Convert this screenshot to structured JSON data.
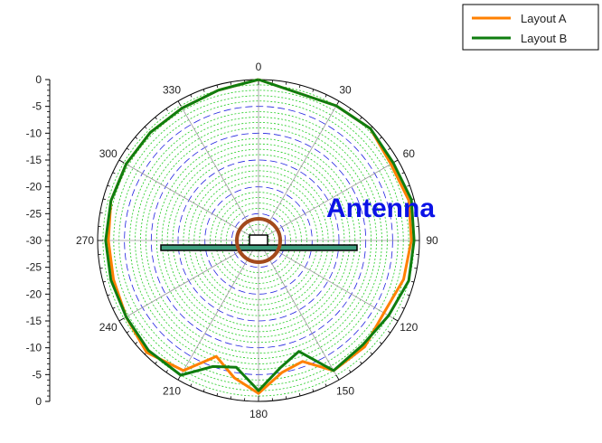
{
  "chart_data": {
    "type": "line",
    "polar": true,
    "theta_direction": "clockwise",
    "theta_zero": "top",
    "r_min": -30,
    "r_max": 0,
    "r_ticks": [
      0,
      -5,
      -10,
      -15,
      -20,
      -25,
      -30
    ],
    "angle_labels": [
      "0",
      "30",
      "60",
      "90",
      "120",
      "150",
      "180",
      "210",
      "240",
      "270",
      "300",
      "330"
    ],
    "angles": [
      0,
      30,
      60,
      90,
      120,
      150,
      180,
      210,
      240,
      270,
      300,
      330
    ],
    "radial_scale_labels": [
      "0",
      "-5",
      "-10",
      "-15",
      "-20",
      "-25",
      "-30",
      "-25",
      "-20",
      "-15",
      "-10",
      "-5",
      "0"
    ],
    "annotation": "Antenna",
    "legend_position": "top-right",
    "series": [
      {
        "name": "Layout A",
        "color": "#ff8000",
        "theta": [
          0,
          30,
          45,
          60,
          75,
          90,
          105,
          120,
          135,
          150,
          160,
          170,
          180,
          190,
          200,
          210,
          225,
          240,
          255,
          270,
          285,
          300,
          315,
          330,
          345,
          360
        ],
        "r": [
          0,
          -1,
          -0.5,
          -1.5,
          -1,
          -1.5,
          -2,
          -3,
          -2,
          -2,
          -6,
          -5,
          -1.5,
          -4,
          -7,
          -2,
          -0.5,
          -1.5,
          -2,
          -2,
          -1.5,
          -1.5,
          -1.5,
          -1.5,
          -1,
          0
        ]
      },
      {
        "name": "Layout B",
        "color": "#0f7d0f",
        "theta": [
          0,
          30,
          45,
          60,
          75,
          90,
          105,
          120,
          135,
          150,
          160,
          170,
          180,
          190,
          200,
          210,
          225,
          240,
          255,
          270,
          285,
          300,
          315,
          330,
          345,
          360
        ],
        "r": [
          0,
          -1,
          -0.5,
          -1,
          -0.5,
          -1,
          -1,
          -2,
          -2.5,
          -2,
          -8,
          -6,
          -2,
          -6,
          -5,
          -1,
          -1,
          -1.5,
          -1.5,
          -1.5,
          -1.5,
          -1.5,
          -1.5,
          -1.5,
          -1,
          0
        ]
      }
    ]
  }
}
